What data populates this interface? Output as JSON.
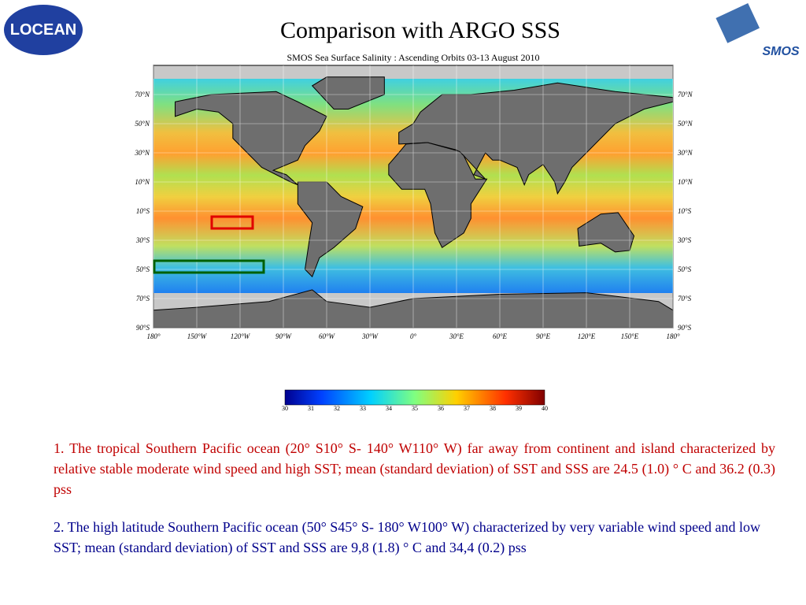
{
  "header": {
    "title": "Comparison with ARGO SSS",
    "logo_left": "LOCEAN",
    "logo_right": "SMOS"
  },
  "map": {
    "title": "SMOS Sea Surface Salinity : Ascending Orbits 03-13 August 2010",
    "lat_labels": [
      "70°N",
      "50°N",
      "30°N",
      "10°N",
      "10°S",
      "30°S",
      "50°S",
      "70°S",
      "90°S"
    ],
    "lon_labels": [
      "180°",
      "150°W",
      "120°W",
      "90°W",
      "60°W",
      "30°W",
      "0°",
      "30°E",
      "60°E",
      "90°E",
      "120°E",
      "150°E",
      "180°"
    ]
  },
  "colorbar": {
    "ticks": [
      "30",
      "31",
      "32",
      "33",
      "34",
      "35",
      "36",
      "37",
      "38",
      "39",
      "40"
    ]
  },
  "text": {
    "paragraphs": [
      "1. The tropical Southern Pacific ocean (20° S10° S- 140° W110° W) far away from continent and island characterized by relative stable moderate wind speed and high SST; mean (standard deviation) of SST and SSS are 24.5 (1.0) ° C and 36.2 (0.3) pss",
      "2. The high latitude Southern Pacific ocean (50° S45° S- 180° W100° W) characterized by very variable wind speed and low SST; mean (standard deviation) of SST and SSS are 9,8 (1.8) ° C and 34,4 (0.2) pss"
    ]
  }
}
